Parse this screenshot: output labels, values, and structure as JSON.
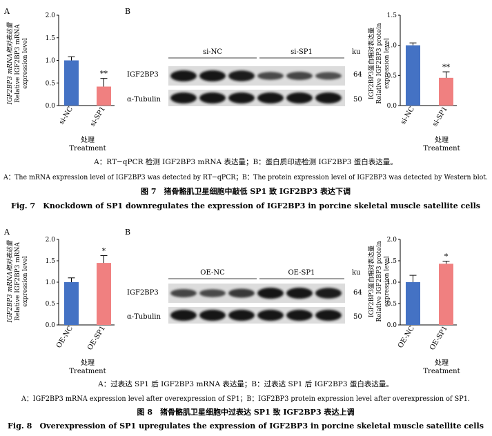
{
  "fig7": {
    "panel_a": {
      "letter": "A",
      "ylabel_cn": "IGF2BP3 mRNA相对表达量",
      "ylabel_en1": "Relative IGF2BP3 mRNA",
      "ylabel_en2": "expression level",
      "xlabel_cn": "处理",
      "xlabel_en": "Treatment"
    },
    "panel_b": {
      "letter": "B",
      "group1": "si-NC",
      "group2": "si-SP1",
      "ku": "ku",
      "row1_label": "IGF2BP3",
      "row1_kd": "64",
      "row2_label": "α-Tubulin",
      "row2_kd": "50"
    },
    "panel_c": {
      "ylabel_cn": "IGF2BP3蛋白相对表达量",
      "ylabel_en1": "Relative IGF2BP3 protein",
      "ylabel_en2": "expression level",
      "xlabel_cn": "处理",
      "xlabel_en": "Treatment"
    },
    "caption_cn": "A：RT−qPCR 检测 IGF2BP3 mRNA 表达量；B：蛋白质印迹检测 IGF2BP3 蛋白表达量。",
    "caption_en": "A：The mRNA expression level of IGF2BP3 was detected by RT−qPCR；B：The protein expression level of IGF2BP3 was detected by Western blot.",
    "title_cn": "图 7　猪骨骼肌卫星细胞中敲低 SP1 致 IGF2BP3 表达下调",
    "title_en": "Fig. 7　Knockdown of SP1 downregulates the expression of IGF2BP3 in porcine skeletal muscle satellite cells"
  },
  "fig8": {
    "panel_a": {
      "letter": "A",
      "ylabel_cn": "IGF2BP3 mRNA相对表达量",
      "ylabel_en1": "Relative IGF2BP3 mRNA",
      "ylabel_en2": "expression level",
      "xlabel_cn": "处理",
      "xlabel_en": "Treatment"
    },
    "panel_b": {
      "letter": "B",
      "group1": "OE-NC",
      "group2": "OE-SP1",
      "ku": "ku",
      "row1_label": "IGF2BP3",
      "row1_kd": "64",
      "row2_label": "α-Tubulin",
      "row2_kd": "50"
    },
    "panel_c": {
      "ylabel_cn": "IGF2BP3蛋白相对表达量",
      "ylabel_en1": "Relative IGF2BP3 protein",
      "ylabel_en2": "expression level",
      "xlabel_cn": "处理",
      "xlabel_en": "Treatment"
    },
    "caption_cn": "A：过表达 SP1 后 IGF2BP3 mRNA 表达量；B：过表达 SP1 后 IGF2BP3 蛋白表达量。",
    "caption_en": "A：IGF2BP3 mRNA expression level after overexpression of SP1；B：IGF2BP3 protein expression level after overexpression of SP1.",
    "title_cn": "图 8　猪骨骼肌卫星细胞中过表达 SP1 致 IGF2BP3 表达上调",
    "title_en": "Fig. 8　Overexpression of SP1 upregulates the expression of IGF2BP3 in porcine skeletal muscle satellite cells"
  },
  "chart_data": [
    {
      "type": "bar",
      "id": "fig7-a",
      "categories": [
        "si-NC",
        "si-SP1"
      ],
      "values": [
        1.0,
        0.42
      ],
      "errors": [
        0.08,
        0.18
      ],
      "significance": [
        "",
        "**"
      ],
      "colors": [
        "#4472c4",
        "#f08080"
      ],
      "ylim": [
        0,
        2.0
      ],
      "yticks": [
        0,
        0.5,
        1.0,
        1.5,
        2.0
      ]
    },
    {
      "type": "bar",
      "id": "fig7-c",
      "categories": [
        "si-NC",
        "si-SP1"
      ],
      "values": [
        1.0,
        0.46
      ],
      "errors": [
        0.04,
        0.1
      ],
      "significance": [
        "",
        "**"
      ],
      "colors": [
        "#4472c4",
        "#f08080"
      ],
      "ylim": [
        0,
        1.5
      ],
      "yticks": [
        0,
        0.5,
        1.0,
        1.5
      ]
    },
    {
      "type": "bar",
      "id": "fig8-a",
      "categories": [
        "OE-NC",
        "OE-SP1"
      ],
      "values": [
        1.0,
        1.45
      ],
      "errors": [
        0.1,
        0.17
      ],
      "significance": [
        "",
        "*"
      ],
      "colors": [
        "#4472c4",
        "#f08080"
      ],
      "ylim": [
        0,
        2.0
      ],
      "yticks": [
        0,
        0.5,
        1.0,
        1.5,
        2.0
      ]
    },
    {
      "type": "bar",
      "id": "fig8-c",
      "categories": [
        "OE-NC",
        "OE-SP1"
      ],
      "values": [
        1.0,
        1.43
      ],
      "errors": [
        0.16,
        0.06
      ],
      "significance": [
        "",
        "*"
      ],
      "colors": [
        "#4472c4",
        "#f08080"
      ],
      "ylim": [
        0,
        2.0
      ],
      "yticks": [
        0,
        0.5,
        1.0,
        1.5,
        2.0
      ]
    }
  ],
  "blots": {
    "fig7": {
      "row1_intensity": [
        1.0,
        1.0,
        0.95,
        0.55,
        0.6,
        0.5
      ],
      "row2_intensity": [
        1,
        1,
        1,
        1,
        1,
        1
      ]
    },
    "fig8": {
      "row1_intensity": [
        0.6,
        0.55,
        0.7,
        1.0,
        1.0,
        0.95
      ],
      "row2_intensity": [
        1,
        1,
        1,
        1,
        1,
        1
      ]
    }
  }
}
